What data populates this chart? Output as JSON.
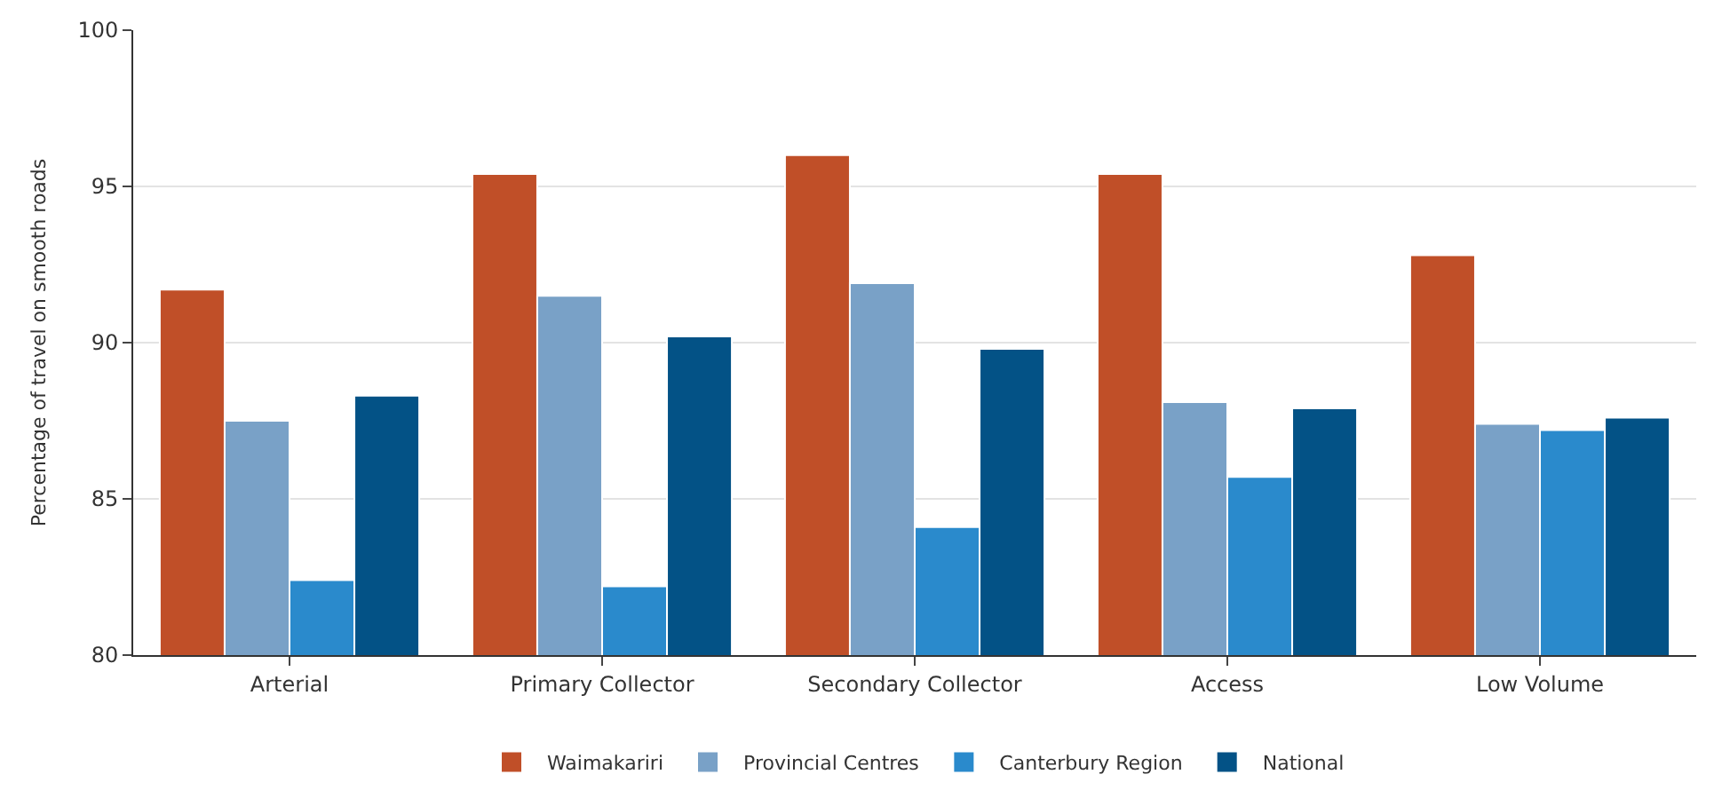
{
  "chart_data": {
    "type": "bar",
    "ylabel": "Percentage of travel on smooth roads",
    "categories": [
      "Arterial",
      "Primary Collector",
      "Secondary Collector",
      "Access",
      "Low Volume"
    ],
    "series": [
      {
        "name": "Waimakariri",
        "color": "#c04f28",
        "values": [
          91.7,
          95.4,
          96.0,
          95.4,
          92.8
        ]
      },
      {
        "name": "Provincial Centres",
        "color": "#79a1c7",
        "values": [
          87.5,
          91.5,
          91.9,
          88.1,
          87.4
        ]
      },
      {
        "name": "Canterbury Region",
        "color": "#2a8acc",
        "values": [
          82.4,
          82.2,
          84.1,
          85.7,
          87.2
        ]
      },
      {
        "name": "National",
        "color": "#035286",
        "values": [
          88.3,
          90.2,
          89.8,
          87.9,
          87.6
        ]
      }
    ],
    "ylim": [
      80,
      100
    ],
    "yticks": [
      80,
      85,
      90,
      95,
      100
    ],
    "grid": "y",
    "legend": "bottom"
  }
}
